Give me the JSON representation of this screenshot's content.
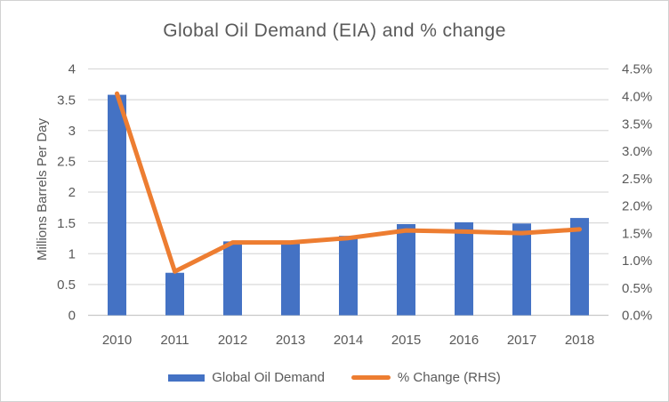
{
  "window": {
    "background": "#ffffff",
    "border_color": "#d2d2d2"
  },
  "colors": {
    "bar_blue": "#4472C4",
    "line_orange": "#ED7D31",
    "text_gray": "#595959",
    "gridline": "#DADADA",
    "axis_line": "#C9C9C9"
  },
  "chart_data": {
    "type": "bar",
    "title": "Global Oil Demand (EIA) and % change",
    "ylabel_left": "Millions Barrels Per Day",
    "ylabel_right": "",
    "xlabel": "",
    "grid": true,
    "legend_position": "bottom",
    "categories": [
      "2010",
      "2011",
      "2012",
      "2013",
      "2014",
      "2015",
      "2016",
      "2017",
      "2018"
    ],
    "series": [
      {
        "name": "Global Oil Demand",
        "type": "bar",
        "axis": "left",
        "color": "#4472C4",
        "values": [
          3.58,
          0.69,
          1.2,
          1.16,
          1.29,
          1.48,
          1.51,
          1.49,
          1.58
        ]
      },
      {
        "name": "% Change (RHS)",
        "type": "line",
        "axis": "right",
        "color": "#ED7D31",
        "values": [
          4.05,
          0.8,
          1.33,
          1.33,
          1.41,
          1.55,
          1.53,
          1.5,
          1.57
        ]
      }
    ],
    "left_axis": {
      "min": 0,
      "max": 4,
      "step": 0.5,
      "tick_labels": [
        "0",
        "0.5",
        "1",
        "1.5",
        "2",
        "2.5",
        "3",
        "3.5",
        "4"
      ]
    },
    "right_axis": {
      "min": 0,
      "max": 4.5,
      "step": 0.5,
      "tick_labels": [
        "0.0%",
        "0.5%",
        "1.0%",
        "1.5%",
        "2.0%",
        "2.5%",
        "3.0%",
        "3.5%",
        "4.0%",
        "4.5%"
      ]
    }
  },
  "legend": {
    "items": [
      {
        "label": "Global Oil Demand",
        "color": "#4472C4",
        "swatch": "rect"
      },
      {
        "label": "% Change (RHS)",
        "color": "#ED7D31",
        "swatch": "line"
      }
    ]
  }
}
